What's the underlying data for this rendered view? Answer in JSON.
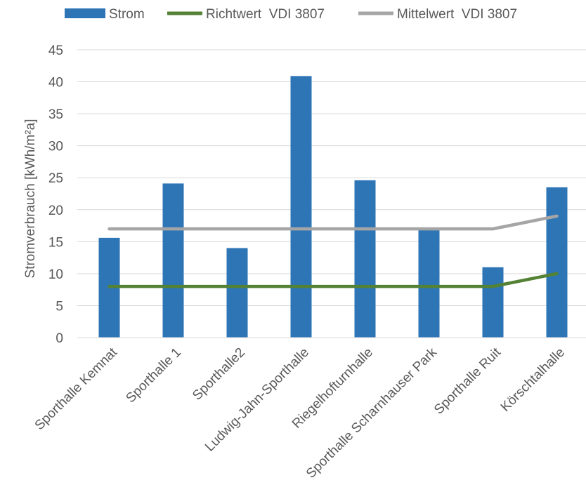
{
  "chart_data": {
    "type": "bar",
    "categories": [
      "Sporthalle Kemnat",
      "Sporthalle 1",
      "Sporthalle2",
      "Ludwig-Jahn-Sporthalle",
      "Riegelhofturnhalle",
      "Sporthalle Scharnhauser Park",
      "Sporthalle Ruit",
      "Körschtalhalle"
    ],
    "series": [
      {
        "name": "Strom",
        "kind": "bar",
        "color": "#2E75B6",
        "values": [
          15.6,
          24.1,
          14.0,
          40.9,
          24.6,
          16.9,
          11.0,
          23.5
        ]
      },
      {
        "name": "Richtwert  VDI 3807",
        "kind": "line",
        "color": "#548235",
        "values": [
          8,
          8,
          8,
          8,
          8,
          8,
          8,
          10
        ]
      },
      {
        "name": "Mittelwert  VDI 3807",
        "kind": "line",
        "color": "#A5A5A5",
        "values": [
          17,
          17,
          17,
          17,
          17,
          17,
          17,
          19
        ]
      }
    ],
    "title": "",
    "xlabel": "",
    "ylabel": "Stromverbrauch [kWh/m²a]",
    "ylim": [
      0,
      45
    ],
    "yticks": [
      0,
      5,
      10,
      15,
      20,
      25,
      30,
      35,
      40,
      45
    ],
    "grid": true,
    "legend_position": "top"
  }
}
